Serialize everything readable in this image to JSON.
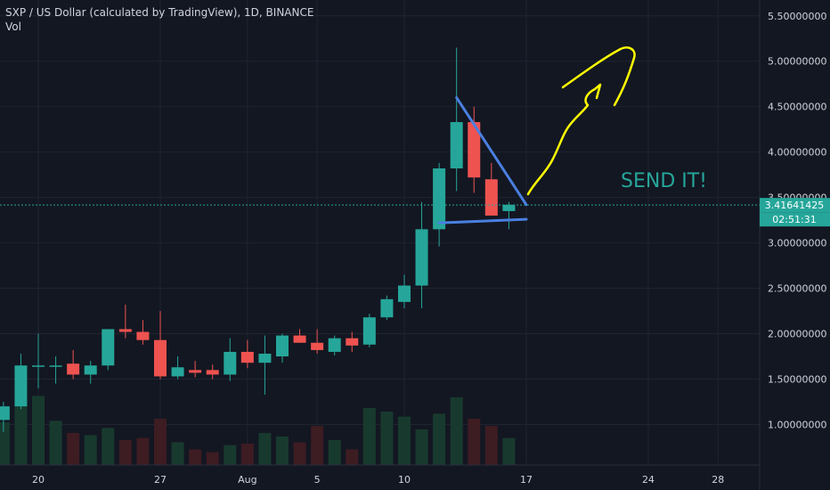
{
  "header": {
    "title": "SXP / US Dollar (calculated by TradingView), 1D, BINANCE",
    "volume_label": "Vol"
  },
  "price_label": {
    "value": "3.41641425",
    "countdown": "02:51:31",
    "color": "#26a69a"
  },
  "annotation": {
    "text": "SEND IT!",
    "color": "#26a69a"
  },
  "colors": {
    "background": "#131722",
    "grid": "#1f2430",
    "up": "#26a69a",
    "down": "#ef5350",
    "volume_up": "#183a2e",
    "volume_down": "#3d1c22",
    "trendline": "#4a7fe0",
    "arrow": "#ffff00",
    "axis_text": "#d1d4dc"
  },
  "chart_data": {
    "type": "candlestick",
    "title": "SXP / US Dollar (calculated by TradingView), 1D, BINANCE",
    "ylim": [
      0.2,
      5.6
    ],
    "y_ticks": [
      "1.00000000",
      "1.50000000",
      "2.00000000",
      "2.50000000",
      "3.00000000",
      "3.50000000",
      "4.00000000",
      "4.50000000",
      "5.00000000",
      "5.50000000"
    ],
    "y_tick_values": [
      1.0,
      1.5,
      2.0,
      2.5,
      3.0,
      3.5,
      4.0,
      4.5,
      5.0,
      5.5
    ],
    "x_ticks": [
      {
        "label": "20",
        "day": 0
      },
      {
        "label": "27",
        "day": 7
      },
      {
        "label": "Aug",
        "day": 12
      },
      {
        "label": "5",
        "day": 16
      },
      {
        "label": "10",
        "day": 21
      },
      {
        "label": "17",
        "day": 28
      },
      {
        "label": "24",
        "day": 35
      },
      {
        "label": "28",
        "day": 39
      }
    ],
    "candles": [
      {
        "day": -2,
        "open": 1.05,
        "high": 1.25,
        "low": 0.92,
        "close": 1.2
      },
      {
        "day": -1,
        "open": 1.2,
        "high": 1.78,
        "low": 1.17,
        "close": 1.65
      },
      {
        "day": 0,
        "open": 1.65,
        "high": 2.0,
        "low": 1.4,
        "close": 1.65
      },
      {
        "day": 1,
        "open": 1.65,
        "high": 1.75,
        "low": 1.45,
        "close": 1.65
      },
      {
        "day": 2,
        "open": 1.67,
        "high": 1.82,
        "low": 1.5,
        "close": 1.55
      },
      {
        "day": 3,
        "open": 1.55,
        "high": 1.7,
        "low": 1.45,
        "close": 1.65
      },
      {
        "day": 4,
        "open": 1.65,
        "high": 2.05,
        "low": 1.6,
        "close": 2.05
      },
      {
        "day": 5,
        "open": 2.05,
        "high": 2.32,
        "low": 1.95,
        "close": 2.02
      },
      {
        "day": 6,
        "open": 2.02,
        "high": 2.15,
        "low": 1.88,
        "close": 1.93
      },
      {
        "day": 7,
        "open": 1.93,
        "high": 2.25,
        "low": 1.5,
        "close": 1.53
      },
      {
        "day": 8,
        "open": 1.53,
        "high": 1.75,
        "low": 1.5,
        "close": 1.63
      },
      {
        "day": 9,
        "open": 1.6,
        "high": 1.7,
        "low": 1.52,
        "close": 1.57
      },
      {
        "day": 10,
        "open": 1.6,
        "high": 1.66,
        "low": 1.5,
        "close": 1.55
      },
      {
        "day": 11,
        "open": 1.55,
        "high": 1.95,
        "low": 1.48,
        "close": 1.8
      },
      {
        "day": 12,
        "open": 1.8,
        "high": 1.93,
        "low": 1.62,
        "close": 1.68
      },
      {
        "day": 13,
        "open": 1.68,
        "high": 1.98,
        "low": 1.33,
        "close": 1.78
      },
      {
        "day": 14,
        "open": 1.75,
        "high": 2.0,
        "low": 1.68,
        "close": 1.98
      },
      {
        "day": 15,
        "open": 1.98,
        "high": 2.05,
        "low": 1.9,
        "close": 1.9
      },
      {
        "day": 16,
        "open": 1.9,
        "high": 2.05,
        "low": 1.78,
        "close": 1.82
      },
      {
        "day": 17,
        "open": 1.8,
        "high": 1.98,
        "low": 1.76,
        "close": 1.95
      },
      {
        "day": 18,
        "open": 1.95,
        "high": 2.02,
        "low": 1.8,
        "close": 1.87
      },
      {
        "day": 19,
        "open": 1.88,
        "high": 2.22,
        "low": 1.85,
        "close": 2.18
      },
      {
        "day": 20,
        "open": 2.18,
        "high": 2.42,
        "low": 2.15,
        "close": 2.38
      },
      {
        "day": 21,
        "open": 2.35,
        "high": 2.65,
        "low": 2.28,
        "close": 2.53
      },
      {
        "day": 22,
        "open": 2.53,
        "high": 3.45,
        "low": 2.28,
        "close": 3.15
      },
      {
        "day": 23,
        "open": 3.15,
        "high": 3.88,
        "low": 2.96,
        "close": 3.82
      },
      {
        "day": 24,
        "open": 3.82,
        "high": 5.15,
        "low": 3.57,
        "close": 4.33
      },
      {
        "day": 25,
        "open": 4.33,
        "high": 4.5,
        "low": 3.55,
        "close": 3.72
      },
      {
        "day": 26,
        "open": 3.7,
        "high": 3.88,
        "low": 3.3,
        "close": 3.3
      },
      {
        "day": 27,
        "open": 3.35,
        "high": 3.45,
        "low": 3.15,
        "close": 3.42
      }
    ],
    "volume": [
      {
        "day": -2,
        "value": 0.6,
        "up": true
      },
      {
        "day": -1,
        "value": 0.92,
        "up": true
      },
      {
        "day": 0,
        "value": 0.97,
        "up": true
      },
      {
        "day": 1,
        "value": 0.62,
        "up": true
      },
      {
        "day": 2,
        "value": 0.45,
        "up": false
      },
      {
        "day": 3,
        "value": 0.42,
        "up": true
      },
      {
        "day": 4,
        "value": 0.52,
        "up": true
      },
      {
        "day": 5,
        "value": 0.35,
        "up": false
      },
      {
        "day": 6,
        "value": 0.38,
        "up": false
      },
      {
        "day": 7,
        "value": 0.65,
        "up": false
      },
      {
        "day": 8,
        "value": 0.32,
        "up": true
      },
      {
        "day": 9,
        "value": 0.22,
        "up": false
      },
      {
        "day": 10,
        "value": 0.18,
        "up": false
      },
      {
        "day": 11,
        "value": 0.28,
        "up": true
      },
      {
        "day": 12,
        "value": 0.3,
        "up": false
      },
      {
        "day": 13,
        "value": 0.45,
        "up": true
      },
      {
        "day": 14,
        "value": 0.4,
        "up": true
      },
      {
        "day": 15,
        "value": 0.32,
        "up": false
      },
      {
        "day": 16,
        "value": 0.55,
        "up": false
      },
      {
        "day": 17,
        "value": 0.35,
        "up": true
      },
      {
        "day": 18,
        "value": 0.22,
        "up": false
      },
      {
        "day": 19,
        "value": 0.8,
        "up": true
      },
      {
        "day": 20,
        "value": 0.75,
        "up": true
      },
      {
        "day": 21,
        "value": 0.68,
        "up": true
      },
      {
        "day": 22,
        "value": 0.5,
        "up": true
      },
      {
        "day": 23,
        "value": 0.72,
        "up": true
      },
      {
        "day": 24,
        "value": 0.95,
        "up": true
      },
      {
        "day": 25,
        "value": 0.65,
        "up": false
      },
      {
        "day": 26,
        "value": 0.55,
        "up": false
      },
      {
        "day": 27,
        "value": 0.38,
        "up": true
      }
    ],
    "trendlines": [
      {
        "from": {
          "day": 24,
          "price": 4.6
        },
        "to": {
          "day": 28,
          "price": 3.42
        }
      },
      {
        "from": {
          "day": 23,
          "price": 3.22
        },
        "to": {
          "day": 28,
          "price": 3.26
        }
      }
    ],
    "current_price": 3.41641425
  }
}
